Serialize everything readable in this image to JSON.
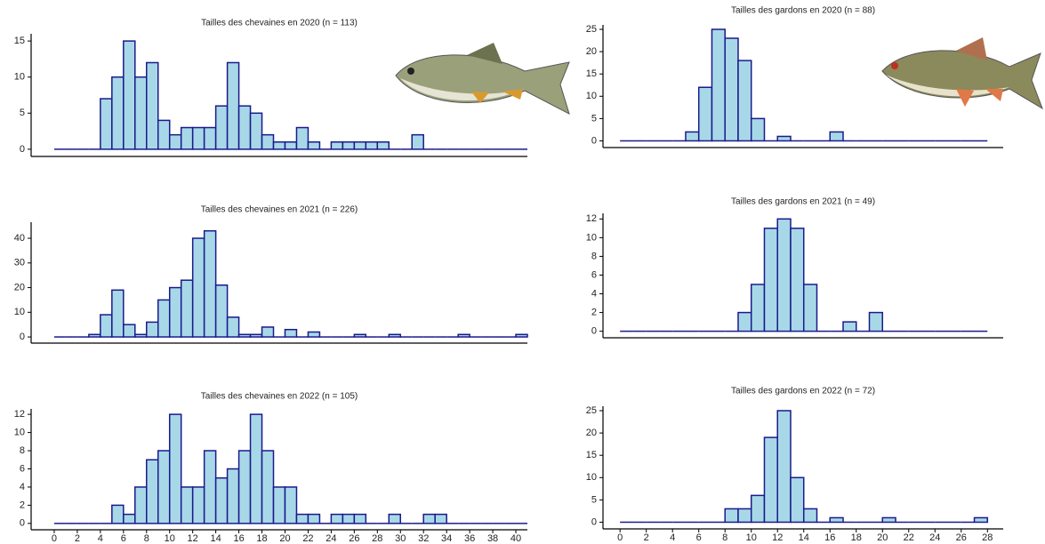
{
  "chart_data": [
    {
      "type": "histogram",
      "title": "Tailles des chevaines en 2020 (n = 113)",
      "bins": [
        0,
        1,
        2,
        3,
        4,
        5,
        6,
        7,
        8,
        9,
        10,
        11,
        12,
        13,
        14,
        15,
        16,
        17,
        18,
        19,
        20,
        21,
        22,
        23,
        24,
        25,
        26,
        27,
        28,
        29,
        30,
        31,
        32,
        33,
        34,
        35,
        36,
        37,
        38,
        39,
        40,
        41
      ],
      "counts": [
        0,
        0,
        0,
        0,
        7,
        10,
        15,
        10,
        12,
        4,
        2,
        3,
        3,
        3,
        6,
        12,
        6,
        5,
        2,
        1,
        1,
        3,
        1,
        0,
        1,
        1,
        1,
        1,
        1,
        0,
        0,
        2,
        0,
        0,
        0,
        0,
        0,
        0,
        0,
        0,
        0
      ],
      "xlim": [
        -2,
        41
      ],
      "ylim": [
        -1,
        16
      ],
      "yticks": [
        0,
        5,
        10,
        15
      ],
      "color": "#a8d8e8",
      "edge_color": "#1a1a8c"
    },
    {
      "type": "histogram",
      "title": "Tailles des chevaines en 2021 (n = 226)",
      "bins": [
        0,
        1,
        2,
        3,
        4,
        5,
        6,
        7,
        8,
        9,
        10,
        11,
        12,
        13,
        14,
        15,
        16,
        17,
        18,
        19,
        20,
        21,
        22,
        23,
        24,
        25,
        26,
        27,
        28,
        29,
        30,
        31,
        32,
        33,
        34,
        35,
        36,
        37,
        38,
        39,
        40,
        41
      ],
      "counts": [
        0,
        0,
        0,
        1,
        9,
        19,
        5,
        1,
        6,
        15,
        20,
        23,
        40,
        43,
        21,
        8,
        1,
        1,
        4,
        0,
        3,
        0,
        2,
        0,
        0,
        0,
        1,
        0,
        0,
        1,
        0,
        0,
        0,
        0,
        0,
        1,
        0,
        0,
        0,
        0,
        1
      ],
      "xlim": [
        -2,
        41
      ],
      "ylim": [
        -2.5,
        46.5
      ],
      "yticks": [
        0,
        10,
        20,
        30,
        40
      ],
      "color": "#a8d8e8",
      "edge_color": "#1a1a8c"
    },
    {
      "type": "histogram",
      "title": "Tailles des chevaines en 2022 (n = 105)",
      "bins": [
        0,
        1,
        2,
        3,
        4,
        5,
        6,
        7,
        8,
        9,
        10,
        11,
        12,
        13,
        14,
        15,
        16,
        17,
        18,
        19,
        20,
        21,
        22,
        23,
        24,
        25,
        26,
        27,
        28,
        29,
        30,
        31,
        32,
        33,
        34,
        35,
        36,
        37,
        38,
        39,
        40,
        41
      ],
      "counts": [
        0,
        0,
        0,
        0,
        0,
        2,
        1,
        4,
        7,
        8,
        12,
        4,
        4,
        8,
        5,
        6,
        8,
        12,
        8,
        4,
        4,
        1,
        1,
        0,
        1,
        1,
        1,
        0,
        0,
        1,
        0,
        0,
        1,
        1,
        0,
        0,
        0,
        0,
        0,
        0,
        0
      ],
      "xlim": [
        -2,
        41
      ],
      "ylim": [
        -0.7,
        12.6
      ],
      "yticks": [
        0,
        2,
        4,
        6,
        8,
        10,
        12
      ],
      "xticks": [
        0,
        2,
        4,
        6,
        8,
        10,
        12,
        14,
        16,
        18,
        20,
        22,
        24,
        26,
        28,
        30,
        32,
        34,
        36,
        38,
        40
      ],
      "color": "#a8d8e8",
      "edge_color": "#1a1a8c"
    },
    {
      "type": "histogram",
      "title": "Tailles des gardons en 2020 (n = 88)",
      "bins": [
        0,
        1,
        2,
        3,
        4,
        5,
        6,
        7,
        8,
        9,
        10,
        11,
        12,
        13,
        14,
        15,
        16,
        17,
        18,
        19,
        20,
        21,
        22,
        23,
        24,
        25,
        26,
        27,
        28
      ],
      "counts": [
        0,
        0,
        0,
        0,
        0,
        2,
        12,
        25,
        23,
        18,
        5,
        0,
        1,
        0,
        0,
        0,
        2,
        0,
        0,
        0,
        0,
        0,
        0,
        0,
        0,
        0,
        0,
        0
      ],
      "xlim": [
        -1.3,
        29.2
      ],
      "ylim": [
        -1.5,
        26
      ],
      "yticks": [
        0,
        5,
        10,
        15,
        20,
        25
      ],
      "color": "#a8d8e8",
      "edge_color": "#1a1a8c"
    },
    {
      "type": "histogram",
      "title": "Tailles des gardons en 2021 (n = 49)",
      "bins": [
        0,
        1,
        2,
        3,
        4,
        5,
        6,
        7,
        8,
        9,
        10,
        11,
        12,
        13,
        14,
        15,
        16,
        17,
        18,
        19,
        20,
        21,
        22,
        23,
        24,
        25,
        26,
        27,
        28
      ],
      "counts": [
        0,
        0,
        0,
        0,
        0,
        0,
        0,
        0,
        0,
        2,
        5,
        11,
        12,
        11,
        5,
        0,
        0,
        1,
        0,
        2,
        0,
        0,
        0,
        0,
        0,
        0,
        0,
        0
      ],
      "xlim": [
        -1.3,
        29.2
      ],
      "ylim": [
        -0.7,
        12.6
      ],
      "yticks": [
        0,
        2,
        4,
        6,
        8,
        10,
        12
      ],
      "color": "#a8d8e8",
      "edge_color": "#1a1a8c"
    },
    {
      "type": "histogram",
      "title": "Tailles des gardons en 2022 (n = 72)",
      "bins": [
        0,
        1,
        2,
        3,
        4,
        5,
        6,
        7,
        8,
        9,
        10,
        11,
        12,
        13,
        14,
        15,
        16,
        17,
        18,
        19,
        20,
        21,
        22,
        23,
        24,
        25,
        26,
        27,
        28
      ],
      "counts": [
        0,
        0,
        0,
        0,
        0,
        0,
        0,
        0,
        3,
        3,
        6,
        19,
        25,
        10,
        3,
        0,
        1,
        0,
        0,
        0,
        1,
        0,
        0,
        0,
        0,
        0,
        0,
        1
      ],
      "xlim": [
        -1.3,
        29.2
      ],
      "ylim": [
        -1.5,
        26
      ],
      "yticks": [
        0,
        5,
        10,
        15,
        20,
        25
      ],
      "xticks": [
        0,
        2,
        4,
        6,
        8,
        10,
        12,
        14,
        16,
        18,
        20,
        22,
        24,
        26,
        28
      ],
      "color": "#a8d8e8",
      "edge_color": "#1a1a8c"
    }
  ]
}
